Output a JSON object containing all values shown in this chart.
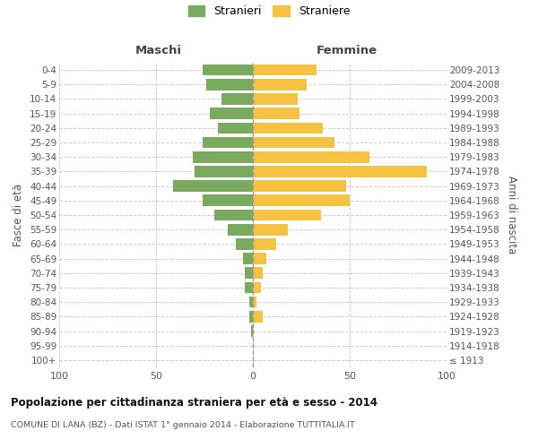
{
  "age_groups": [
    "100+",
    "95-99",
    "90-94",
    "85-89",
    "80-84",
    "75-79",
    "70-74",
    "65-69",
    "60-64",
    "55-59",
    "50-54",
    "45-49",
    "40-44",
    "35-39",
    "30-34",
    "25-29",
    "20-24",
    "15-19",
    "10-14",
    "5-9",
    "0-4"
  ],
  "birth_years": [
    "≤ 1913",
    "1914-1918",
    "1919-1923",
    "1924-1928",
    "1929-1933",
    "1934-1938",
    "1939-1943",
    "1944-1948",
    "1949-1953",
    "1954-1958",
    "1959-1963",
    "1964-1968",
    "1969-1973",
    "1974-1978",
    "1979-1983",
    "1984-1988",
    "1989-1993",
    "1994-1998",
    "1999-2003",
    "2004-2008",
    "2009-2013"
  ],
  "males": [
    0,
    0,
    1,
    2,
    2,
    4,
    4,
    5,
    9,
    13,
    20,
    26,
    41,
    30,
    31,
    26,
    18,
    22,
    16,
    24,
    26
  ],
  "females": [
    0,
    0,
    0,
    5,
    2,
    4,
    5,
    7,
    12,
    18,
    35,
    50,
    48,
    90,
    60,
    42,
    36,
    24,
    23,
    28,
    33
  ],
  "male_color": "#7aaa5e",
  "female_color": "#f5c242",
  "title": "Popolazione per cittadinanza straniera per età e sesso - 2014",
  "subtitle": "COMUNE DI LANA (BZ) - Dati ISTAT 1° gennaio 2014 - Elaborazione TUTTITALIA.IT",
  "ylabel_left": "Fasce di età",
  "ylabel_right": "Anni di nascita",
  "xlabel_left": "Maschi",
  "xlabel_right": "Femmine",
  "legend_stranieri": "Stranieri",
  "legend_straniere": "Straniere",
  "xlim": 100,
  "background_color": "#ffffff",
  "grid_color": "#cccccc"
}
